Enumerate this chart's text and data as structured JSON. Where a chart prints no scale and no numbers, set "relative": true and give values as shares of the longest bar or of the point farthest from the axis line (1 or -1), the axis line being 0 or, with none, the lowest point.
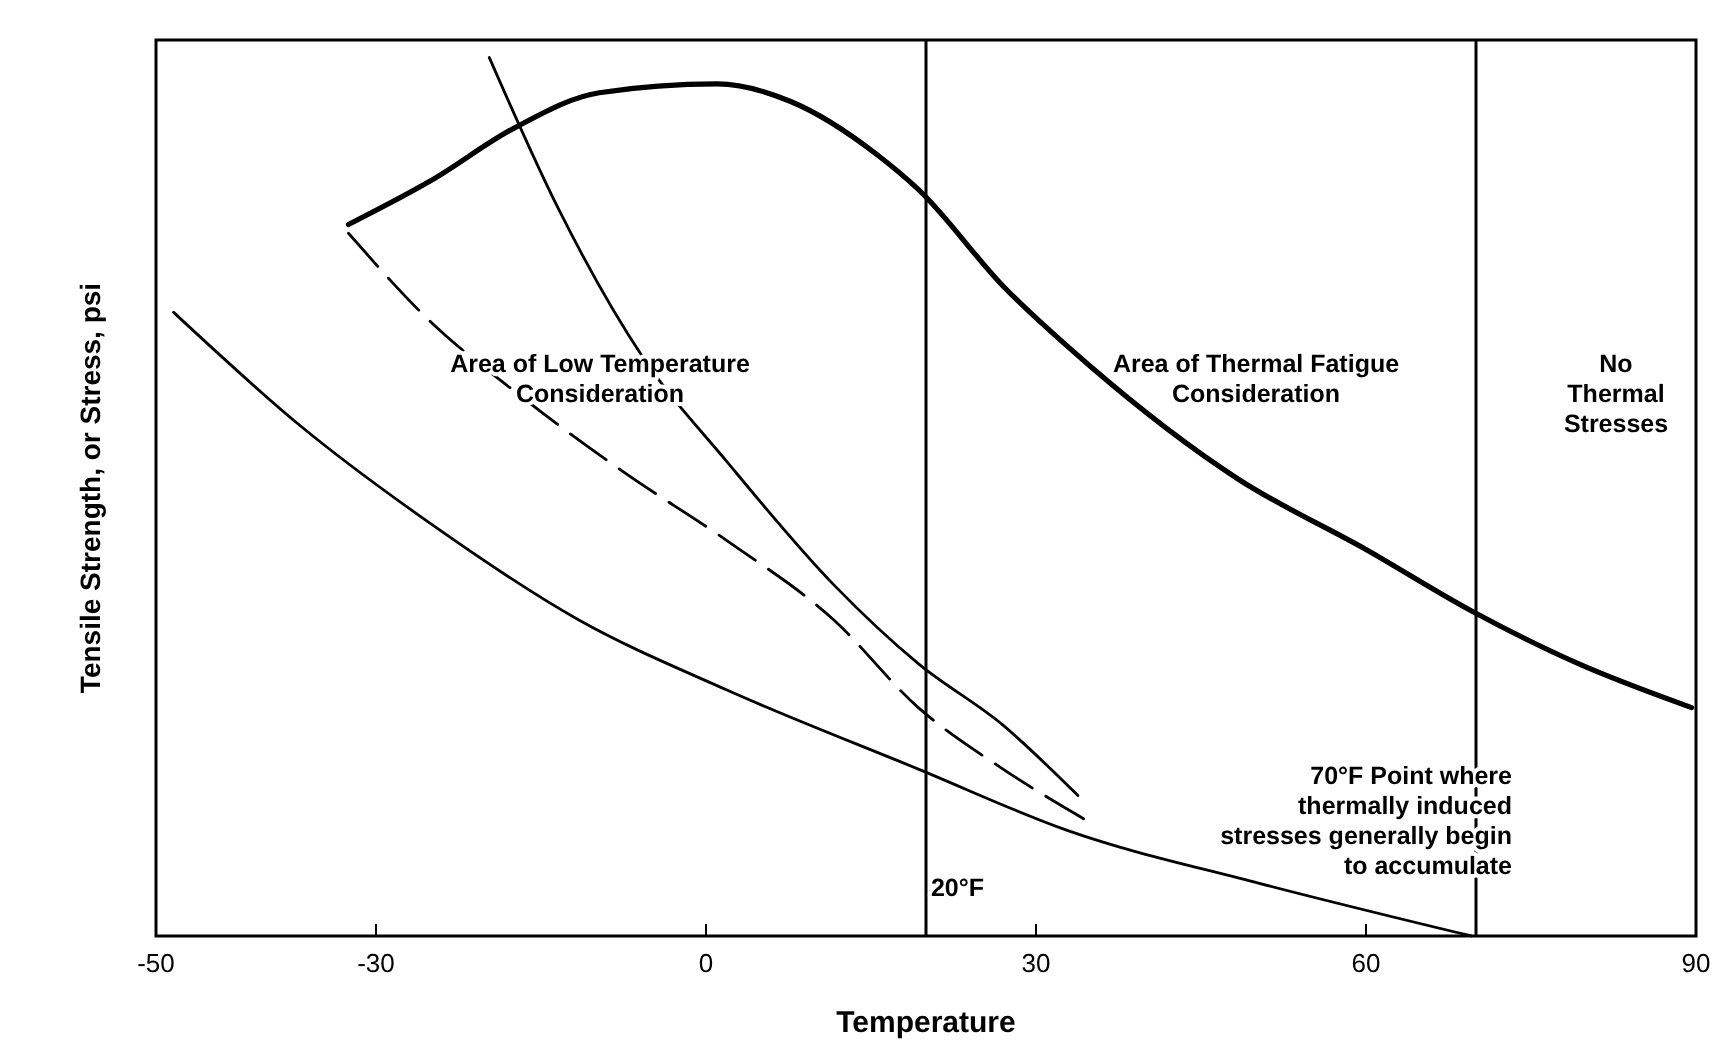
{
  "chart_data": {
    "type": "line",
    "relative": true,
    "xlabel": "Temperature",
    "ylabel": "Tensile Strength, or Stress, psi",
    "xlim": [
      -50,
      90
    ],
    "xticks": [
      -50,
      -30,
      0,
      30,
      60,
      90
    ],
    "grid": false,
    "series": [
      {
        "color": "#000000",
        "line_style": "solid",
        "x": [
          -32.5,
          -25,
          -17.4,
          -9.7,
          1,
          7.7,
          15.5,
          19.3,
          27,
          34.8,
          48.4,
          60,
          69.6,
          79.3,
          89.6
        ],
        "values": [
          0.81,
          0.86,
          0.92,
          0.96,
          0.97,
          0.95,
          0.89,
          0.85,
          0.74,
          0.65,
          0.52,
          0.44,
          0.37,
          0.31,
          0.26
        ]
      },
      {
        "color": "#000000",
        "line_style": "solid",
        "x": [
          -48.4,
          -36.8,
          -25.1,
          -11.6,
          1.9,
          19.3,
          32.9,
          50.3,
          69.6
        ],
        "values": [
          0.71,
          0.58,
          0.47,
          0.36,
          0.28,
          0.19,
          0.12,
          0.06,
          0
        ]
      },
      {
        "color": "#000000",
        "line_style": "dashed",
        "x": [
          -32.5,
          -25.1,
          -17.4,
          -7.7,
          1.9,
          11.6,
          19.3,
          27,
          34.8
        ],
        "values": [
          0.8,
          0.7,
          0.62,
          0.53,
          0.45,
          0.36,
          0.26,
          0.19,
          0.13
        ]
      },
      {
        "color": "#000000",
        "line_style": "solid",
        "x": [
          -19.7,
          -13.5,
          -5.8,
          1.9,
          11.6,
          19.3,
          27,
          33.8
        ],
        "values": [
          1,
          0.83,
          0.66,
          0.54,
          0.4,
          0.31,
          0.24,
          0.16
        ]
      }
    ],
    "ref_lines": [
      {
        "axis": "x",
        "value": 20
      },
      {
        "axis": "x",
        "value": 70
      }
    ],
    "annotations": [
      "Area of Low Temperature Consideration",
      "Area of Thermal Fatigue Consideration",
      "No Thermal Stresses",
      "70°F Point where thermally induced stresses generally begin to accumulate",
      "20°F"
    ]
  }
}
